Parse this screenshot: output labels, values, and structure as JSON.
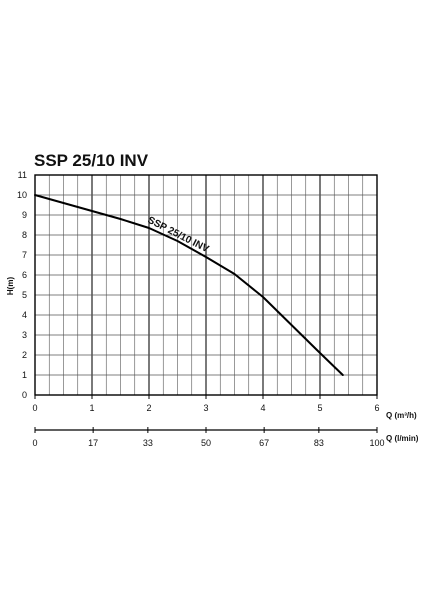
{
  "chart_data": {
    "type": "line",
    "title": "SSP 25/10 INV",
    "xlabel": "Q (m³/h)",
    "ylabel": "H(m)",
    "x2label": "Q (l/min)",
    "xlim": [
      0,
      6
    ],
    "ylim": [
      0,
      11
    ],
    "x2lim": [
      0,
      100
    ],
    "x_ticks": [
      "0",
      "1",
      "2",
      "3",
      "4",
      "5",
      "6"
    ],
    "y_ticks": [
      "0",
      "1",
      "2",
      "3",
      "4",
      "5",
      "6",
      "7",
      "8",
      "9",
      "10",
      "11"
    ],
    "x2_ticks": [
      {
        "value": 0,
        "label": "0"
      },
      {
        "value": 17,
        "label": "17"
      },
      {
        "value": 33,
        "label": "33"
      },
      {
        "value": 50,
        "label": "50"
      },
      {
        "value": 67,
        "label": "67"
      },
      {
        "value": 83,
        "label": "83"
      },
      {
        "value": 100,
        "label": "100"
      }
    ],
    "grid": true,
    "series": [
      {
        "name": "SSP 25/10  INV",
        "color": "#000000",
        "x": [
          0,
          0.5,
          1.0,
          1.5,
          2.0,
          2.5,
          3.0,
          3.5,
          4.0,
          4.5,
          5.0,
          5.4
        ],
        "y": [
          10.0,
          9.6,
          9.2,
          8.8,
          8.35,
          7.7,
          6.9,
          6.05,
          4.9,
          3.5,
          2.1,
          1.0
        ]
      }
    ]
  }
}
